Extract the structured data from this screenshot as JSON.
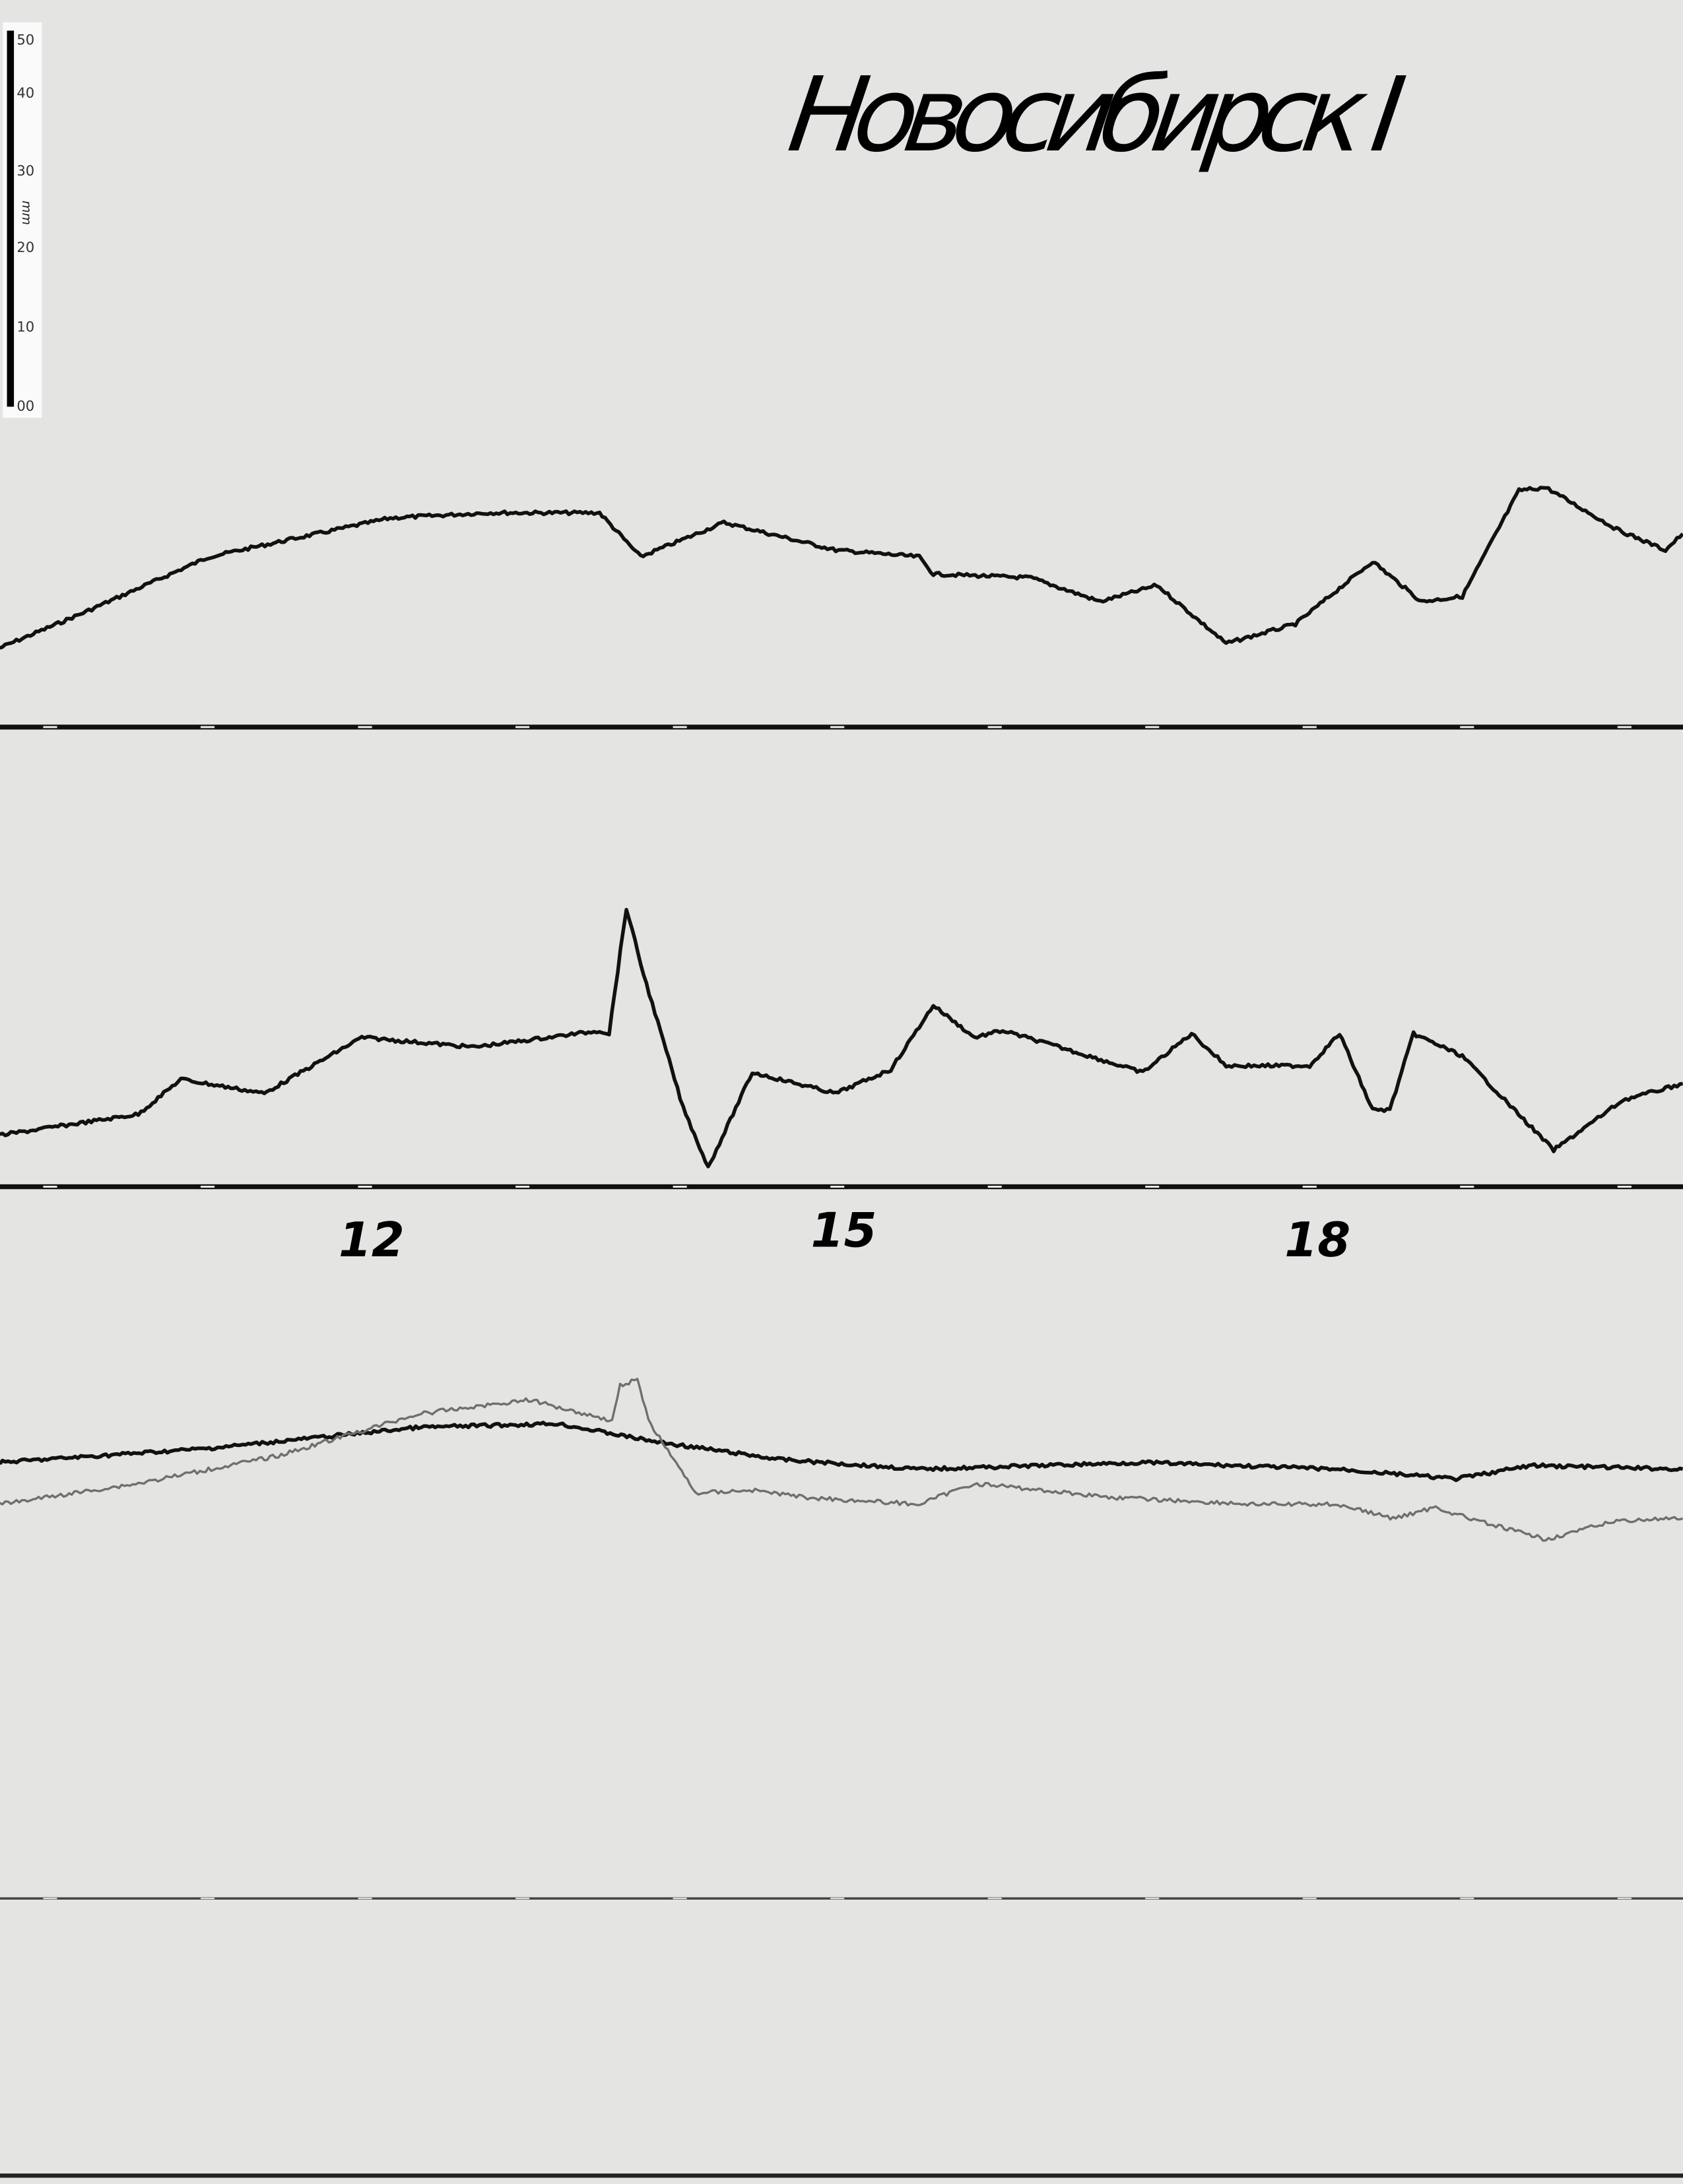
{
  "title": "Новосибирск I",
  "ruler": {
    "unit": "mm",
    "ticks": [
      "50",
      "40",
      "30",
      "20",
      "10",
      "00"
    ]
  },
  "colors": {
    "paper": "#e4e4e2",
    "trace": "#111111",
    "trace_secondary": "#6f6f6f"
  },
  "chart_data": {
    "type": "line",
    "title": "Новосибирск I",
    "xlabel": "",
    "ylabel": "",
    "x_unit": "hours",
    "y_unit": "mm above panel baseline",
    "x_tick_labels": [
      "12",
      "15",
      "18"
    ],
    "x_ticks": [
      12,
      15,
      18
    ],
    "xlim": [
      9.68,
      20.37
    ],
    "grid": false,
    "panels": [
      {
        "series": [
          {
            "x": [
              9.68,
              10.21,
              11.01,
              12.16,
              12.78,
              13.49,
              13.75,
              14.28,
              14.99,
              15.52,
              15.61,
              16.23,
              16.67,
              17.03,
              17.47,
              17.91,
              18.4,
              18.71,
              18.97,
              19.33,
              19.5,
              19.95,
              20.26,
              20.37
            ],
            "y": [
              10.6,
              15.3,
              22.8,
              28.0,
              28.7,
              28.7,
              22.8,
              27.4,
              23.7,
              22.8,
              20.5,
              20.0,
              16.8,
              19.0,
              11.2,
              13.8,
              22.2,
              16.8,
              17.5,
              31.7,
              32.1,
              26.5,
              23.7,
              25.9
            ]
          }
        ]
      },
      {
        "series": [
          {
            "x": [
              9.68,
              10.56,
              10.83,
              11.36,
              11.98,
              12.69,
              13.49,
              13.55,
              13.66,
              13.77,
              14.02,
              14.18,
              14.46,
              14.99,
              15.34,
              15.61,
              15.87,
              16.05,
              16.41,
              16.94,
              17.25,
              17.47,
              18.0,
              18.19,
              18.4,
              18.51,
              18.66,
              18.97,
              19.24,
              19.55,
              19.99,
              20.37
            ],
            "y": [
              6.9,
              9.7,
              14.4,
              12.5,
              20.0,
              18.7,
              20.9,
              20.5,
              37.3,
              28.4,
              10.6,
              2.6,
              15.3,
              12.5,
              15.7,
              24.3,
              20.0,
              20.9,
              18.7,
              15.3,
              20.5,
              16.2,
              16.2,
              20.5,
              10.3,
              10.3,
              20.5,
              17.5,
              11.6,
              4.9,
              11.6,
              13.8
            ]
          }
        ]
      },
      {
        "series": [
          {
            "x": [
              9.68,
              11.01,
              12.34,
              13.22,
              13.84,
              14.64,
              15.52,
              16.94,
              18.18,
              18.93,
              19.41,
              20.37
            ],
            "y": [
              58.4,
              60.3,
              63.1,
              63.6,
              61.2,
              58.8,
              57.5,
              58.4,
              57.5,
              56.2,
              58.0,
              57.5
            ]
          },
          {
            "x": [
              9.68,
              10.56,
              11.45,
              12.34,
              13.04,
              13.57,
              13.62,
              13.73,
              13.8,
              14.1,
              14.46,
              14.81,
              15.52,
              15.87,
              16.76,
              17.64,
              18.18,
              18.53,
              18.8,
              19.06,
              19.5,
              19.95,
              20.37
            ],
            "y": [
              52.8,
              55.6,
              59.3,
              64.9,
              66.8,
              64.0,
              68.7,
              69.6,
              64.0,
              54.3,
              54.7,
              53.7,
              52.8,
              55.6,
              53.7,
              52.8,
              52.8,
              50.9,
              52.4,
              50.6,
              48.1,
              50.6,
              50.9
            ]
          }
        ]
      }
    ]
  }
}
